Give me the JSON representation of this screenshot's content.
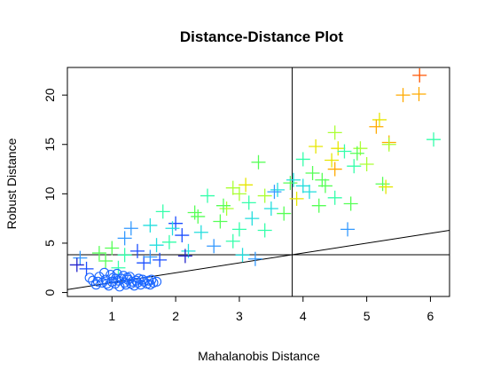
{
  "chart_data": {
    "type": "scatter",
    "title": "Distance-Distance Plot",
    "xlabel": "Mahalanobis Distance",
    "ylabel": "Robust Distance",
    "xlim": [
      0.3,
      6.3
    ],
    "ylim": [
      -0.4,
      22.8
    ],
    "xticks": [
      "1",
      "2",
      "3",
      "4",
      "5",
      "6"
    ],
    "yticks": [
      "0",
      "5",
      "10",
      "15",
      "20"
    ],
    "grid": false,
    "legend": "none",
    "cutoff_x": 3.83,
    "cutoff_y": 3.83,
    "reference_line": {
      "type": "y=x",
      "from": [
        0.3,
        0.3
      ],
      "to": [
        6.3,
        6.3
      ]
    },
    "colors": {
      "outlier_palette": [
        "#ff1a1a",
        "#ff5500",
        "#ffaa00",
        "#e6e600",
        "#aaff33",
        "#55ff55",
        "#33ffaa",
        "#22dddd",
        "#3399ff",
        "#1a4dff",
        "#2222cc"
      ],
      "regular": "#1a66ff",
      "lines": "#000000"
    },
    "series": [
      {
        "marker": "plus",
        "points": [
          [
            5.83,
            22.0
          ],
          [
            5.82,
            20.1
          ],
          [
            5.57,
            20.0
          ],
          [
            5.2,
            17.5
          ],
          [
            6.05,
            15.5
          ],
          [
            5.35,
            15.2
          ],
          [
            5.35,
            15.0
          ],
          [
            4.9,
            14.6
          ],
          [
            5.0,
            13.0
          ],
          [
            4.5,
            16.2
          ],
          [
            4.55,
            14.6
          ],
          [
            4.2,
            14.8
          ],
          [
            4.0,
            13.5
          ],
          [
            3.3,
            13.2
          ],
          [
            4.5,
            12.5
          ],
          [
            4.65,
            14.3
          ],
          [
            4.8,
            12.8
          ],
          [
            5.25,
            11.0
          ],
          [
            5.3,
            10.7
          ],
          [
            4.5,
            9.6
          ],
          [
            4.75,
            9.0
          ],
          [
            4.7,
            6.4
          ],
          [
            4.1,
            10.2
          ],
          [
            4.35,
            10.8
          ],
          [
            3.8,
            11.1
          ],
          [
            3.6,
            10.4
          ],
          [
            3.4,
            9.8
          ],
          [
            3.1,
            10.9
          ],
          [
            2.9,
            10.6
          ],
          [
            2.5,
            9.8
          ],
          [
            3.0,
            10.0
          ],
          [
            2.8,
            8.5
          ],
          [
            2.3,
            8.1
          ],
          [
            2.0,
            7.0
          ],
          [
            1.8,
            8.2
          ],
          [
            1.6,
            6.8
          ],
          [
            1.3,
            6.5
          ],
          [
            1.2,
            5.5
          ],
          [
            1.0,
            4.5
          ],
          [
            0.8,
            4.0
          ],
          [
            0.5,
            3.5
          ],
          [
            0.45,
            2.8
          ],
          [
            1.1,
            2.5
          ],
          [
            1.5,
            3.0
          ],
          [
            1.7,
            4.8
          ],
          [
            2.2,
            4.2
          ],
          [
            2.6,
            4.7
          ],
          [
            2.9,
            5.2
          ],
          [
            3.2,
            7.5
          ],
          [
            3.5,
            8.5
          ],
          [
            3.9,
            9.5
          ],
          [
            4.3,
            11.4
          ],
          [
            4.0,
            10.8
          ],
          [
            3.7,
            8.0
          ],
          [
            3.4,
            6.3
          ],
          [
            3.0,
            6.4
          ],
          [
            2.7,
            7.2
          ],
          [
            2.4,
            6.1
          ],
          [
            2.1,
            5.8
          ],
          [
            1.9,
            5.1
          ],
          [
            1.4,
            4.2
          ],
          [
            1.2,
            3.8
          ],
          [
            0.9,
            3.2
          ],
          [
            1.6,
            3.6
          ],
          [
            1.95,
            6.5
          ],
          [
            2.35,
            7.7
          ],
          [
            2.75,
            8.8
          ],
          [
            3.15,
            9.1
          ],
          [
            3.55,
            10.2
          ],
          [
            3.85,
            11.4
          ],
          [
            4.15,
            12.1
          ],
          [
            4.45,
            13.4
          ],
          [
            4.85,
            14.1
          ],
          [
            3.25,
            3.4
          ],
          [
            3.05,
            3.8
          ],
          [
            1.75,
            3.3
          ],
          [
            2.15,
            3.7
          ],
          [
            0.6,
            2.4
          ],
          [
            5.15,
            16.8
          ],
          [
            4.25,
            8.8
          ]
        ]
      },
      {
        "marker": "circle",
        "points": [
          [
            0.65,
            1.5
          ],
          [
            0.7,
            1.2
          ],
          [
            0.75,
            0.8
          ],
          [
            0.8,
            1.6
          ],
          [
            0.85,
            1.0
          ],
          [
            0.9,
            1.3
          ],
          [
            0.95,
            0.7
          ],
          [
            1.0,
            1.1
          ],
          [
            1.02,
            1.5
          ],
          [
            1.05,
            0.9
          ],
          [
            1.1,
            1.2
          ],
          [
            1.12,
            0.6
          ],
          [
            1.15,
            1.4
          ],
          [
            1.2,
            1.0
          ],
          [
            1.22,
            0.8
          ],
          [
            1.25,
            1.3
          ],
          [
            1.3,
            0.9
          ],
          [
            1.32,
            1.1
          ],
          [
            1.35,
            0.7
          ],
          [
            1.38,
            1.2
          ],
          [
            1.4,
            1.0
          ],
          [
            1.45,
            0.8
          ],
          [
            1.48,
            1.3
          ],
          [
            1.5,
            1.1
          ],
          [
            1.55,
            0.9
          ],
          [
            1.58,
            1.2
          ],
          [
            1.6,
            0.8
          ],
          [
            1.65,
            1.0
          ],
          [
            1.7,
            1.1
          ],
          [
            0.88,
            2.0
          ],
          [
            0.98,
            1.8
          ],
          [
            1.08,
            1.9
          ],
          [
            1.18,
            1.7
          ],
          [
            1.28,
            1.6
          ],
          [
            0.78,
            1.1
          ],
          [
            0.92,
            0.9
          ],
          [
            1.06,
            1.4
          ],
          [
            1.24,
            1.5
          ],
          [
            1.42,
            1.4
          ],
          [
            1.62,
            1.3
          ]
        ]
      }
    ]
  }
}
